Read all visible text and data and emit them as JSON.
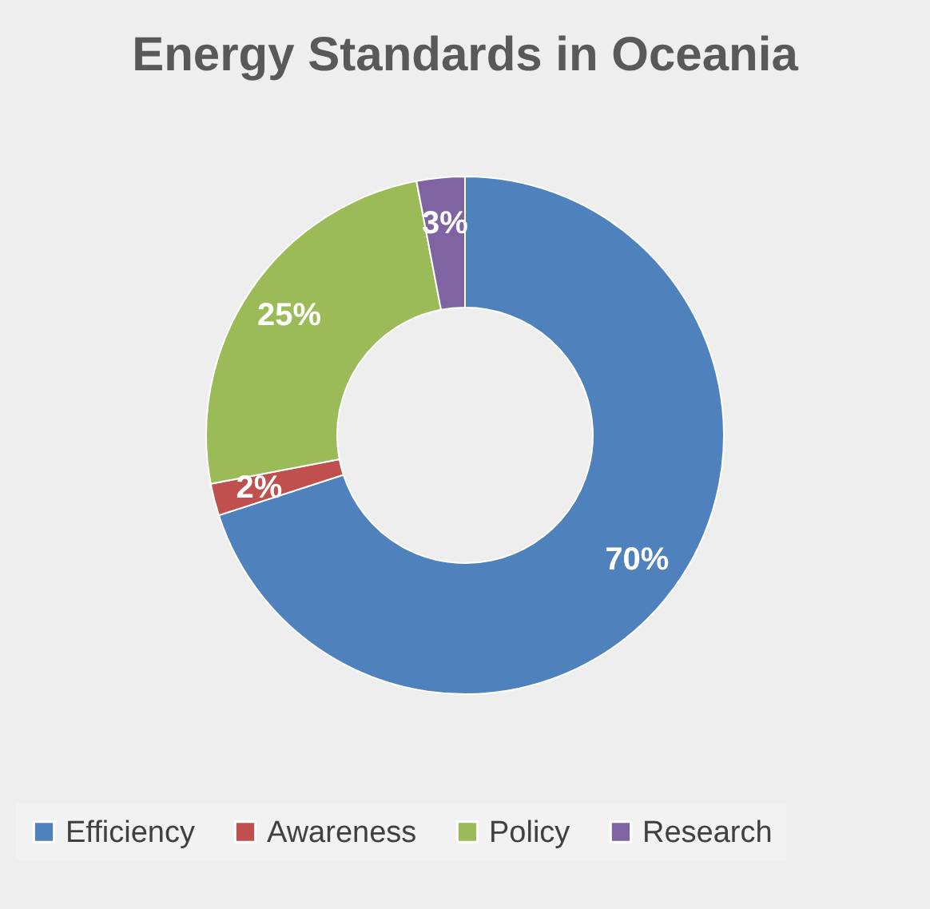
{
  "chart_data": {
    "type": "donut",
    "title": "Energy Standards in Oceania",
    "categories": [
      "Efficiency",
      "Awareness",
      "Policy",
      "Research"
    ],
    "values": [
      70,
      2,
      25,
      3
    ],
    "colors": [
      "#4f81bd",
      "#c0504d",
      "#9bbb59",
      "#8064a2"
    ],
    "value_labels": [
      "70%",
      "2%",
      "25%",
      "3%"
    ],
    "legend": "bottom"
  }
}
